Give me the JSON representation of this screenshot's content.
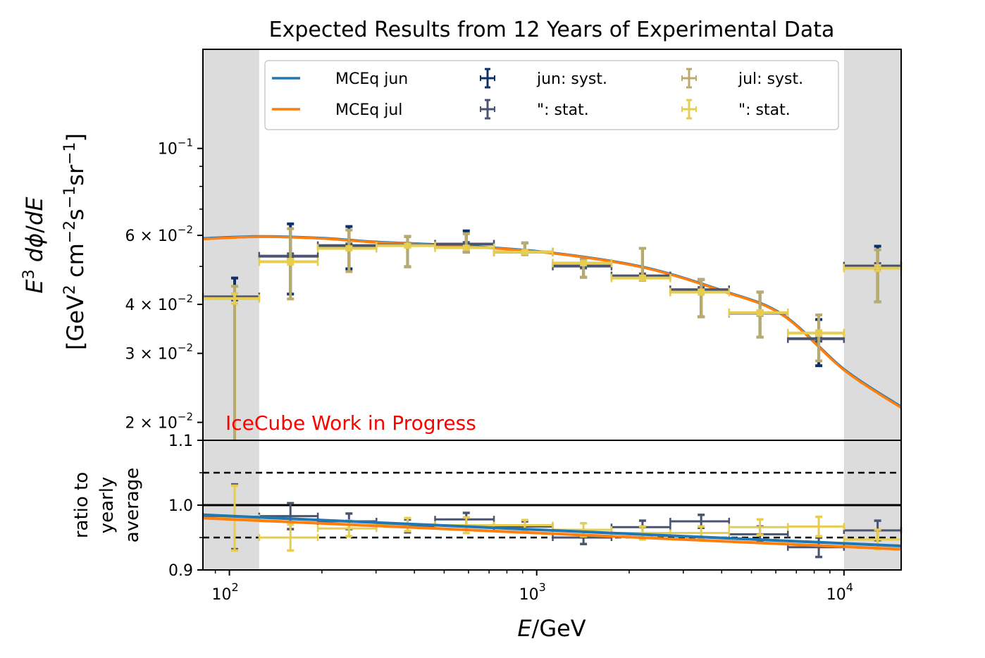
{
  "chart_data": [
    {
      "panel": "main",
      "type": "scatter",
      "title": "Expected Results from 12 Years of Experimental Data",
      "xlabel": "E/GeV",
      "ylabel_line1": "E^3 dΦ/dE",
      "ylabel_line2": "[GeV^2 cm^-2 s^-1 sr^-1]",
      "xscale": "log",
      "yscale": "log",
      "xlim": [
        82,
        15350
      ],
      "ylim": [
        0.018,
        0.179
      ],
      "x_ticks": [
        {
          "value": 100,
          "label": "10",
          "exp": "2"
        },
        {
          "value": 1000,
          "label": "10",
          "exp": "3"
        },
        {
          "value": 10000,
          "label": "10",
          "exp": "4"
        }
      ],
      "y_ticks": [
        {
          "value": 0.1,
          "label": "10",
          "exp": "−1"
        },
        {
          "value": 0.06,
          "label": "6 × 10",
          "exp": "−2"
        },
        {
          "value": 0.04,
          "label": "4 × 10",
          "exp": "−2"
        },
        {
          "value": 0.03,
          "label": "3 × 10",
          "exp": "−2"
        },
        {
          "value": 0.02,
          "label": "2 × 10",
          "exp": "−2"
        }
      ],
      "shaded_regions": [
        [
          82,
          125
        ],
        [
          10000,
          15350
        ]
      ],
      "annotation": "IceCube Work in Progress",
      "legend": {
        "placement": "top-center",
        "entries": [
          {
            "label": "MCEq jun",
            "kind": "line",
            "color": "#1f77b4"
          },
          {
            "label": "jun: syst.",
            "kind": "errorbar",
            "color": "#0d3068"
          },
          {
            "label": "jul: syst.",
            "kind": "errorbar",
            "color": "#b8ab6c"
          },
          {
            "label": "MCEq jul",
            "kind": "line",
            "color": "#ff7f0e"
          },
          {
            "label": "\": stat.",
            "kind": "errorbar",
            "color": "#4a5470"
          },
          {
            "label": "\": stat.",
            "kind": "errorbar",
            "color": "#e6cd52"
          }
        ]
      },
      "bins": {
        "centers": [
          104,
          158,
          245,
          380,
          590,
          915,
          1420,
          2210,
          3430,
          5330,
          8280,
          12870
        ],
        "edges_low": [
          82,
          125,
          194,
          301,
          467,
          726,
          1128,
          1752,
          2722,
          4228,
          6569,
          10000
        ],
        "edges_high": [
          125,
          194,
          301,
          467,
          726,
          1128,
          1752,
          2722,
          4228,
          6569,
          10000,
          15350
        ]
      },
      "series": [
        {
          "name": "jun",
          "values": [
            0.0418,
            0.0531,
            0.0565,
            0.0567,
            0.057,
            0.0544,
            0.0501,
            0.0473,
            0.0436,
            0.038,
            0.0327,
            0.0501
          ],
          "syst_up": [
            0.0467,
            0.0642,
            0.0632,
            0.0596,
            0.0616,
            0.0574,
            0.052,
            0.0556,
            0.0463,
            0.043,
            0.0366,
            0.0563
          ],
          "syst_down": [
            0.0175,
            0.0425,
            0.0493,
            0.0499,
            0.0544,
            0.0536,
            0.0469,
            0.0461,
            0.0372,
            0.033,
            0.0279,
            0.0406
          ],
          "stat_err": [
            0.0008,
            0.0008,
            0.0006,
            0.0006,
            0.0006,
            0.0006,
            0.0006,
            0.0006,
            0.0006,
            0.0005,
            0.0005,
            0.0008
          ]
        },
        {
          "name": "jul",
          "values": [
            0.0414,
            0.0514,
            0.0556,
            0.0565,
            0.0558,
            0.0544,
            0.051,
            0.0467,
            0.043,
            0.0381,
            0.0338,
            0.0495
          ],
          "syst_up": [
            0.0445,
            0.0624,
            0.0619,
            0.0596,
            0.0606,
            0.0574,
            0.052,
            0.0556,
            0.0463,
            0.043,
            0.0376,
            0.0551
          ],
          "syst_down": [
            0.0175,
            0.0413,
            0.0485,
            0.0499,
            0.0544,
            0.0536,
            0.0469,
            0.0461,
            0.0372,
            0.033,
            0.0287,
            0.0406
          ],
          "stat_err": [
            0.0012,
            0.0008,
            0.0006,
            0.0006,
            0.0006,
            0.0006,
            0.0006,
            0.0006,
            0.0006,
            0.0005,
            0.0005,
            0.0008
          ]
        }
      ],
      "mceq": {
        "x": [
          82,
          125,
          200,
          300,
          590,
          1150,
          2240,
          4000,
          6300,
          10000,
          15350
        ],
        "jun": [
          0.0589,
          0.0596,
          0.059,
          0.0577,
          0.0563,
          0.054,
          0.0497,
          0.0434,
          0.0377,
          0.0273,
          0.0219
        ],
        "jul": [
          0.0587,
          0.0595,
          0.0589,
          0.0576,
          0.0562,
          0.0539,
          0.0496,
          0.0433,
          0.0376,
          0.0272,
          0.0218
        ]
      }
    },
    {
      "panel": "ratio",
      "type": "scatter",
      "ylabel": "ratio to yearly average",
      "ylabel_lines": [
        "ratio to",
        "yearly",
        "average"
      ],
      "ylim": [
        0.9,
        1.1
      ],
      "y_ticks": [
        {
          "value": 1.1,
          "label": "1.1"
        },
        {
          "value": 1.0,
          "label": "1.0"
        },
        {
          "value": 0.9,
          "label": "0.9"
        }
      ],
      "reference_lines": [
        {
          "value": 1.0,
          "style": "solid"
        },
        {
          "value": 1.05,
          "style": "dashed"
        },
        {
          "value": 0.95,
          "style": "dashed"
        }
      ],
      "series": [
        {
          "name": "jun",
          "values": [
            0.982,
            0.983,
            0.975,
            0.968,
            0.978,
            0.967,
            0.95,
            0.966,
            0.975,
            0.955,
            0.935,
            0.961
          ],
          "stat_err": [
            0.05,
            0.02,
            0.012,
            0.01,
            0.01,
            0.008,
            0.01,
            0.01,
            0.01,
            0.012,
            0.015,
            0.015
          ]
        },
        {
          "name": "jul",
          "values": [
            0.98,
            0.95,
            0.964,
            0.97,
            0.969,
            0.969,
            0.962,
            0.957,
            0.957,
            0.966,
            0.967,
            0.947
          ],
          "stat_err": [
            0.05,
            0.02,
            0.012,
            0.01,
            0.012,
            0.008,
            0.01,
            0.01,
            0.01,
            0.012,
            0.015,
            0.015
          ]
        }
      ],
      "mceq": {
        "x": [
          82,
          15350
        ],
        "jun": [
          0.985,
          0.937
        ],
        "jul": [
          0.98,
          0.932
        ]
      }
    }
  ],
  "colors": {
    "mceq_jun": "#1f77b4",
    "mceq_jul": "#ff7f0e",
    "jun_syst": "#0d3068",
    "jun_stat": "#4a5470",
    "jul_syst": "#b8ab6c",
    "jul_stat": "#e6cd52",
    "shade": "#dcdcdc",
    "annotation": "#ff0000"
  }
}
